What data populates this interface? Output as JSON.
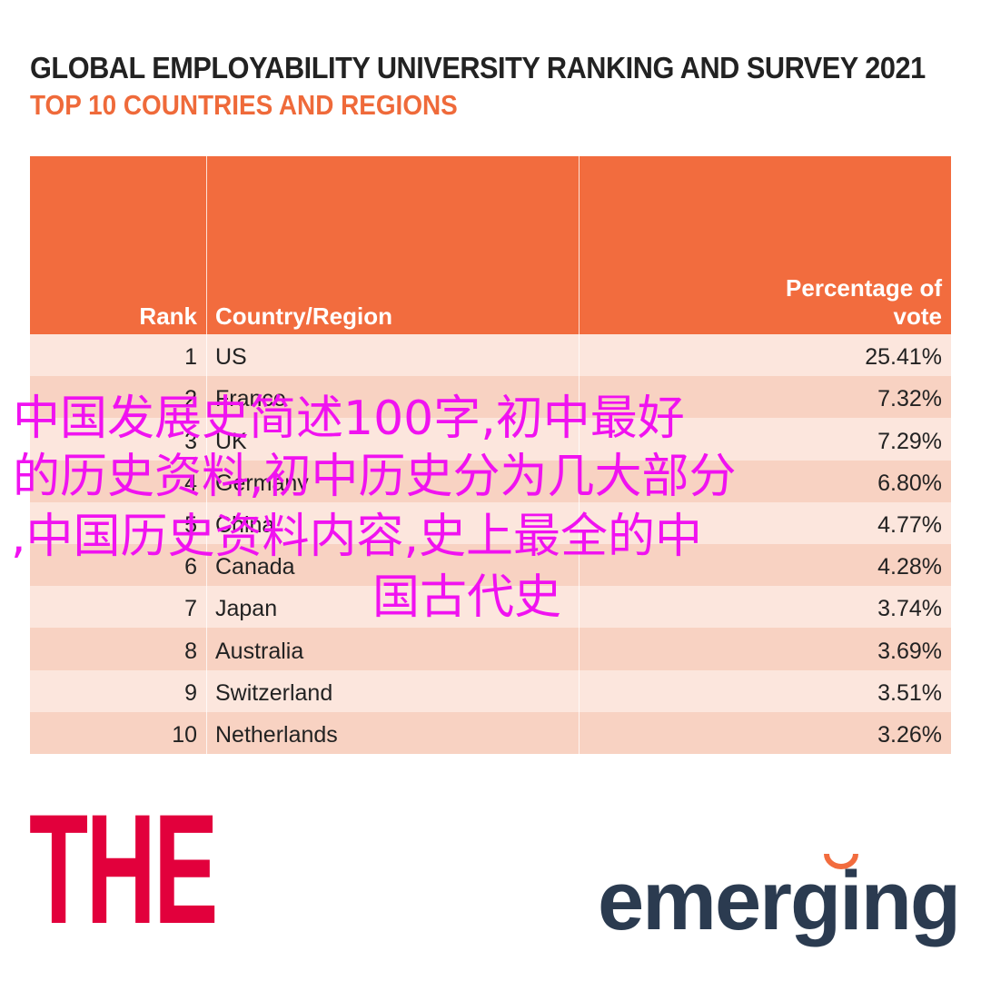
{
  "header": {
    "title": "GLOBAL EMPLOYABILITY UNIVERSITY RANKING AND SURVEY 2021",
    "subtitle": "TOP 10 COUNTRIES AND REGIONS"
  },
  "table": {
    "columns": [
      "Rank",
      "Country/Region",
      "Percentage of vote"
    ],
    "rows": [
      [
        "1",
        "US",
        "25.41%"
      ],
      [
        "2",
        "France",
        "7.32%"
      ],
      [
        "3",
        "UK",
        "7.29%"
      ],
      [
        "4",
        "Germany",
        "6.80%"
      ],
      [
        "5",
        "China",
        "4.77%"
      ],
      [
        "6",
        "Canada",
        "4.28%"
      ],
      [
        "7",
        "Japan",
        "3.74%"
      ],
      [
        "8",
        "Australia",
        "3.69%"
      ],
      [
        "9",
        "Switzerland",
        "3.51%"
      ],
      [
        "10",
        "Netherlands",
        "3.26%"
      ]
    ]
  },
  "overlay": {
    "lines": [
      "中国发展史简述100字,初中最好",
      "的历史资料,初中历史分为几大部分",
      ",中国历史资料内容,史上最全的中",
      "国古代史"
    ]
  },
  "logos": {
    "left": "THE",
    "right": "emerging"
  }
}
